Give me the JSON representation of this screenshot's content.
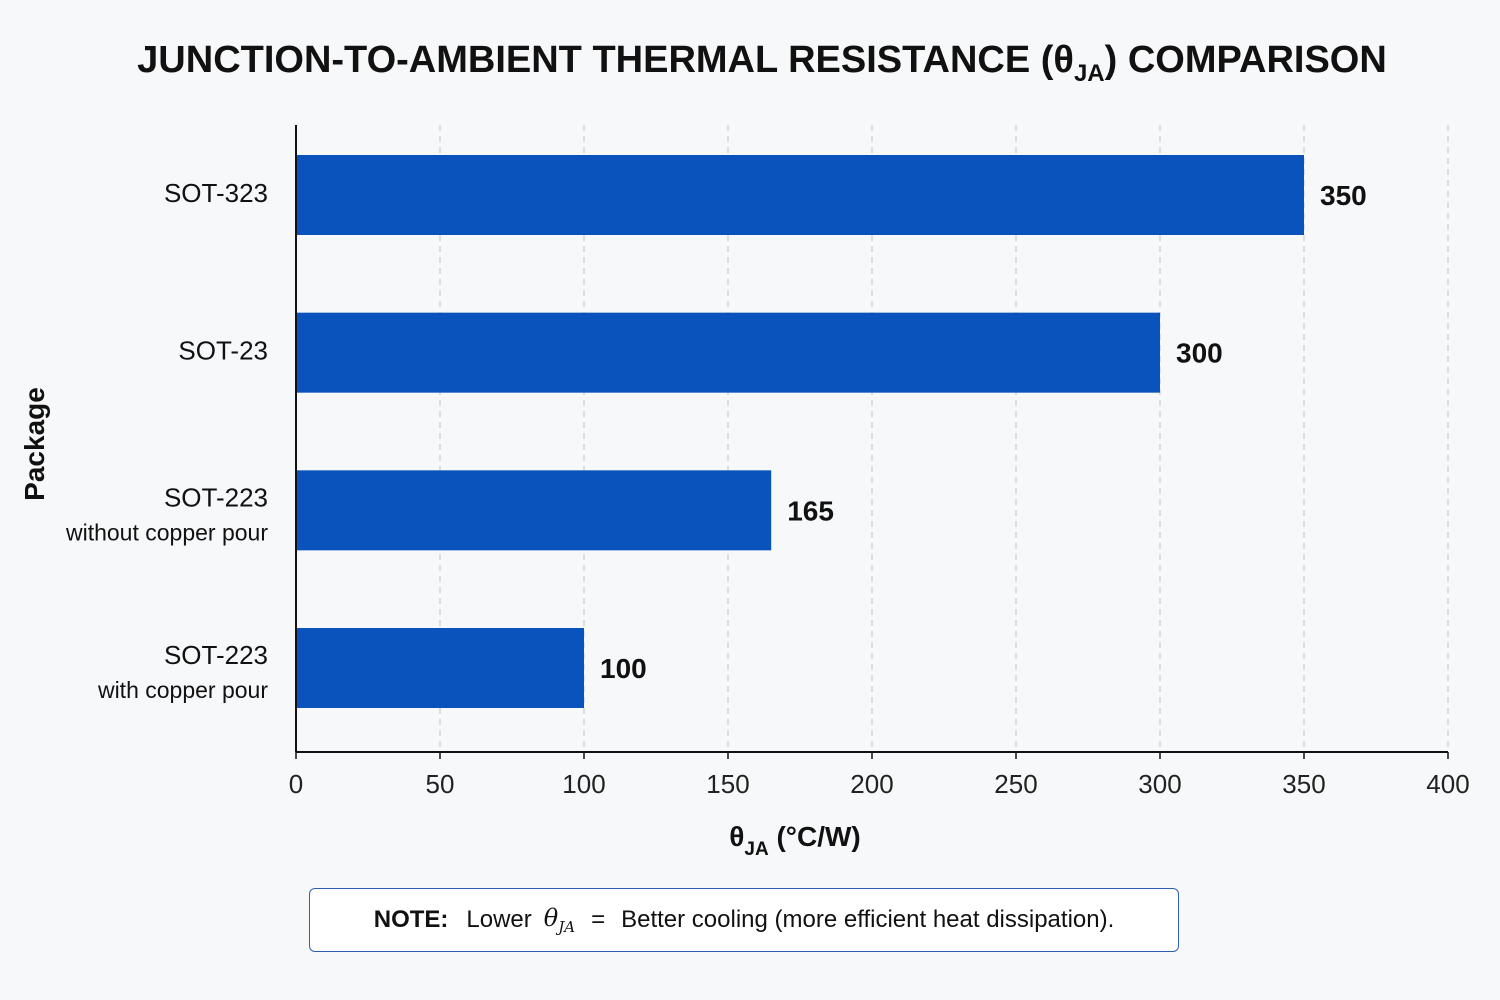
{
  "chart_data": {
    "type": "bar",
    "orientation": "horizontal",
    "title": {
      "main": "JUNCTION-TO-AMBIENT THERMAL RESISTANCE (θ",
      "sub": "JA",
      "tail": ") COMPARISON"
    },
    "xlabel": {
      "main": "θ",
      "sub": "JA",
      "tail": " (°C/W)"
    },
    "ylabel": "Package",
    "categories": [
      {
        "name": "SOT-323",
        "detail": ""
      },
      {
        "name": "SOT-23",
        "detail": ""
      },
      {
        "name": "SOT-223",
        "detail": "without copper pour"
      },
      {
        "name": "SOT-223",
        "detail": "with copper pour"
      }
    ],
    "values": [
      350,
      300,
      165,
      100
    ],
    "value_labels": [
      "350",
      "300",
      "165",
      "100"
    ],
    "xlim": [
      0,
      400
    ],
    "xticks": [
      0,
      50,
      100,
      150,
      200,
      250,
      300,
      350,
      400
    ],
    "xtick_labels": [
      "0",
      "50",
      "100",
      "150",
      "200",
      "250",
      "300",
      "350",
      "400"
    ],
    "grid": "vertical dashed",
    "legend": "none",
    "bar_color": "#0a53bd"
  },
  "note": {
    "label": "NOTE:",
    "text_before": "Lower",
    "symbol": "θ",
    "symbol_sub": "JA",
    "equals": "=",
    "text_after": "Better cooling (more efficient heat dissipation)."
  }
}
